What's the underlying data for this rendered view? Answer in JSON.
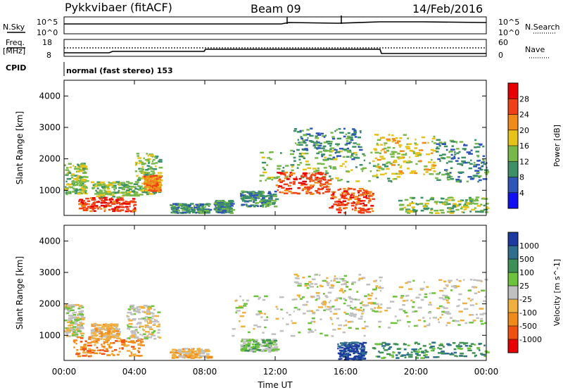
{
  "header": {
    "radar": "Pykkvibaer (fitACF)",
    "beam": "Beam 09",
    "date": "14/Feb/2016"
  },
  "top_panels": {
    "nsky_label": "N.Sky",
    "nsearch_label": "N.Search",
    "noise_ticks_left": [
      "10^5",
      "10^0"
    ],
    "noise_ticks_right": [
      "10^5",
      "10^0"
    ],
    "freq_label": "Freq.",
    "freq_unit": "[MHz]",
    "freq_ticks": [
      "18",
      "8"
    ],
    "nave_label": "Nave",
    "nave_ticks": [
      "60",
      "0"
    ],
    "cpid_label": "CPID",
    "cpid_text": "normal (fast stereo) 153"
  },
  "chart_data": [
    {
      "type": "heatmap",
      "name": "power-panel",
      "title": "",
      "xlabel": "Time UT",
      "ylabel": "Slant Range [km]",
      "x_tick_labels": [
        "00:00",
        "04:00",
        "08:00",
        "12:00",
        "16:00",
        "20:00",
        "00:00"
      ],
      "xlim_hours": [
        0,
        24
      ],
      "ylim": [
        200,
        4500
      ],
      "y_ticks": [
        1000,
        2000,
        3000,
        4000
      ],
      "colorbar": {
        "label": "Power [dB]",
        "ticks": [
          "4",
          "8",
          "12",
          "16",
          "20",
          "24",
          "28"
        ],
        "colors": [
          "#1010f0",
          "#2f55b8",
          "#3c8f67",
          "#77b84a",
          "#e6c21a",
          "#f08a1a",
          "#f04018",
          "#e80000"
        ]
      },
      "regions": [
        {
          "t0": 0.0,
          "t1": 1.2,
          "r0": 900,
          "r1": 1900,
          "level": 3
        },
        {
          "t0": 0.8,
          "t1": 4.0,
          "r0": 350,
          "r1": 800,
          "level": 6
        },
        {
          "t0": 1.5,
          "t1": 4.0,
          "r0": 800,
          "r1": 1300,
          "level": 3
        },
        {
          "t0": 4.0,
          "t1": 5.4,
          "r0": 850,
          "r1": 2200,
          "level": 3
        },
        {
          "t0": 4.5,
          "t1": 5.4,
          "r0": 1000,
          "r1": 1500,
          "level": 5
        },
        {
          "t0": 6.0,
          "t1": 8.2,
          "r0": 300,
          "r1": 600,
          "level": 2
        },
        {
          "t0": 8.5,
          "t1": 9.5,
          "r0": 300,
          "r1": 700,
          "level": 2
        },
        {
          "t0": 10.0,
          "t1": 12.0,
          "r0": 500,
          "r1": 1000,
          "level": 2
        },
        {
          "t0": 11.0,
          "t1": 19.0,
          "r0": 1300,
          "r1": 2300,
          "level": 3
        },
        {
          "t0": 12.0,
          "t1": 15.0,
          "r0": 900,
          "r1": 1600,
          "level": 6
        },
        {
          "t0": 15.0,
          "t1": 17.5,
          "r0": 300,
          "r1": 1100,
          "level": 6
        },
        {
          "t0": 13.0,
          "t1": 17.0,
          "r0": 2000,
          "r1": 3000,
          "level": 2
        },
        {
          "t0": 17.5,
          "t1": 21.0,
          "r0": 1500,
          "r1": 2800,
          "level": 4
        },
        {
          "t0": 19.0,
          "t1": 24.0,
          "r0": 300,
          "r1": 800,
          "level": 3
        },
        {
          "t0": 21.0,
          "t1": 24.0,
          "r0": 1300,
          "r1": 2700,
          "level": 2
        }
      ]
    },
    {
      "type": "heatmap",
      "name": "velocity-panel",
      "title": "",
      "xlabel": "Time UT",
      "ylabel": "Slant Range [km]",
      "x_tick_labels": [
        "00:00",
        "04:00",
        "08:00",
        "12:00",
        "16:00",
        "20:00",
        "00:00"
      ],
      "xlim_hours": [
        0,
        24
      ],
      "ylim": [
        200,
        4500
      ],
      "y_ticks": [
        1000,
        2000,
        3000,
        4000
      ],
      "colorbar": {
        "label": "Velocity [m s^-1]",
        "ticks": [
          "1000",
          "500",
          "100",
          "25",
          "-25",
          "-100",
          "-500",
          "-1000"
        ],
        "colors": [
          "#1c3aa0",
          "#2f6e8c",
          "#3c8f55",
          "#6cc23a",
          "#c0c0c0",
          "#f0b040",
          "#f08a1a",
          "#f05010",
          "#e80000"
        ]
      },
      "regions": [
        {
          "t0": 0.0,
          "t1": 1.0,
          "r0": 1000,
          "r1": 2000,
          "level": 4
        },
        {
          "t0": 0.5,
          "t1": 4.5,
          "r0": 350,
          "r1": 1000,
          "level": 6
        },
        {
          "t0": 1.5,
          "t1": 3.0,
          "r0": 900,
          "r1": 1400,
          "level": 5
        },
        {
          "t0": 3.5,
          "t1": 5.4,
          "r0": 900,
          "r1": 2000,
          "level": 4
        },
        {
          "t0": 6.0,
          "t1": 8.2,
          "r0": 300,
          "r1": 600,
          "level": 5
        },
        {
          "t0": 10.0,
          "t1": 12.0,
          "r0": 500,
          "r1": 900,
          "level": 3
        },
        {
          "t0": 9.5,
          "t1": 19.0,
          "r0": 1000,
          "r1": 2300,
          "level": 4
        },
        {
          "t0": 13.0,
          "t1": 18.0,
          "r0": 1800,
          "r1": 3000,
          "level": 4
        },
        {
          "t0": 15.5,
          "t1": 17.0,
          "r0": 250,
          "r1": 800,
          "level": 0
        },
        {
          "t0": 17.5,
          "t1": 24.0,
          "r0": 300,
          "r1": 800,
          "level": 2
        },
        {
          "t0": 19.0,
          "t1": 24.0,
          "r0": 1300,
          "r1": 2800,
          "level": 4
        }
      ]
    }
  ]
}
